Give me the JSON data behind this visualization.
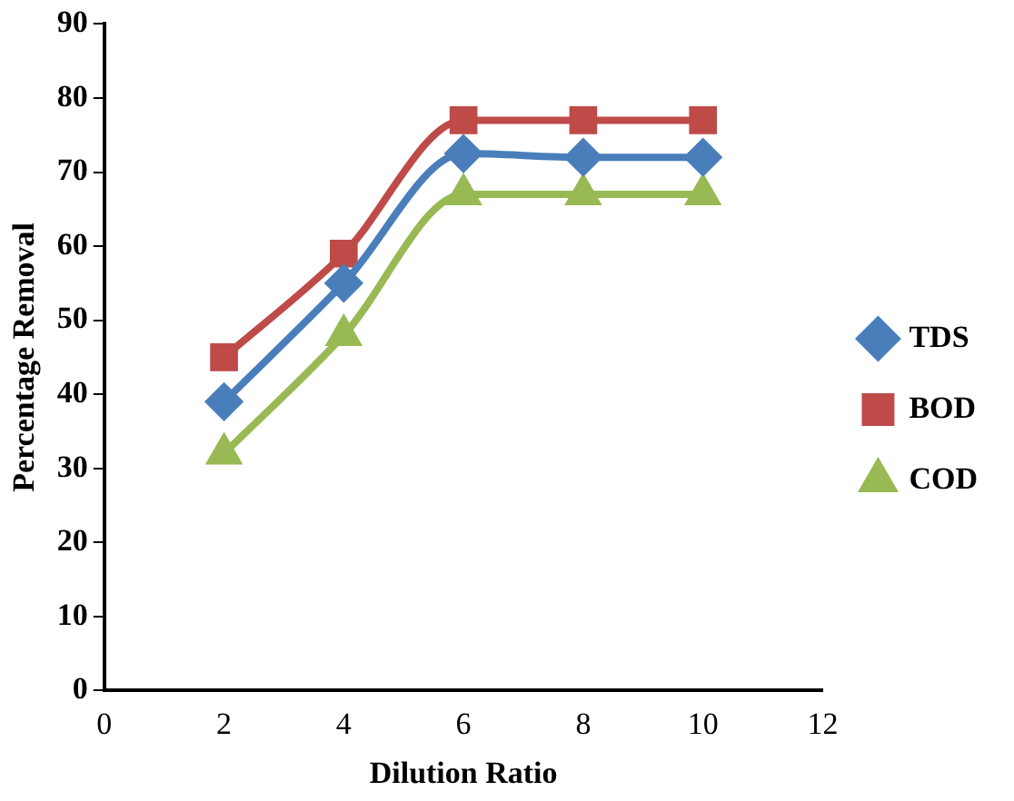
{
  "chart_data": {
    "type": "line",
    "xlabel": "Dilution Ratio",
    "ylabel": "Percentage Removal",
    "x": [
      2,
      4,
      6,
      8,
      10
    ],
    "series": [
      {
        "name": "TDS",
        "color": "#4a7ebb",
        "marker": "diamond",
        "values": [
          39,
          55,
          72.5,
          72,
          72
        ]
      },
      {
        "name": "BOD",
        "color": "#be4b48",
        "marker": "square",
        "values": [
          45,
          59,
          77,
          77,
          77
        ]
      },
      {
        "name": "COD",
        "color": "#98b954",
        "marker": "triangle",
        "values": [
          32,
          48,
          67,
          67,
          67
        ]
      }
    ],
    "xlim": [
      0,
      12
    ],
    "xticks": [
      0,
      2,
      4,
      6,
      8,
      10,
      12
    ],
    "ylim": [
      0,
      90
    ],
    "yticks": [
      0,
      10,
      20,
      30,
      40,
      50,
      60,
      70,
      80,
      90
    ],
    "grid": false,
    "legend": "right"
  }
}
